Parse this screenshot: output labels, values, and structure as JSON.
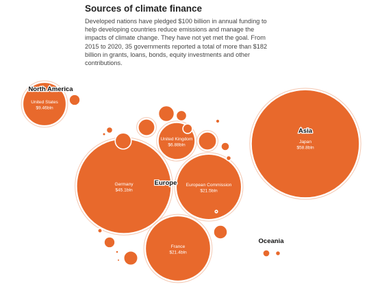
{
  "header": {
    "title": "Sources of climate finance",
    "subtitle": "Developed nations have pledged $100 billion in annual funding to help developing countries reduce emissions and manage the impacts of climate change. They have not yet met the goal. From 2015 to 2020, 35 governments reported a total of more than $182 billion in grants, loans, bonds, equity investments and other contributions."
  },
  "chart_data": {
    "type": "bubble",
    "unit": "bln",
    "regions": [
      {
        "name": "North America",
        "countries": [
          {
            "name": "United States",
            "label": "$9.46bln",
            "value": 9.46
          },
          {
            "name": "",
            "label": "",
            "value": 0.6
          }
        ]
      },
      {
        "name": "Asia",
        "countries": [
          {
            "name": "Japan",
            "label": "$58.8bln",
            "value": 58.8
          }
        ]
      },
      {
        "name": "Europe",
        "countries": [
          {
            "name": "Germany",
            "label": "$45.1bln",
            "value": 45.1
          },
          {
            "name": "European Commission",
            "label": "$21.5bln",
            "value": 21.5
          },
          {
            "name": "France",
            "label": "$21.4bln",
            "value": 21.4
          },
          {
            "name": "United Kingdom",
            "label": "$6.88bln",
            "value": 6.88
          },
          {
            "name": "",
            "label": "",
            "value": 1.65
          },
          {
            "name": "",
            "label": "",
            "value": 1.4
          },
          {
            "name": "",
            "label": "",
            "value": 1.3
          },
          {
            "name": "",
            "label": "",
            "value": 1.25
          },
          {
            "name": "",
            "label": "",
            "value": 1.0
          },
          {
            "name": "",
            "label": "",
            "value": 0.95
          },
          {
            "name": "",
            "label": "",
            "value": 0.6
          },
          {
            "name": "",
            "label": "",
            "value": 0.55
          },
          {
            "name": "",
            "label": "",
            "value": 0.45
          },
          {
            "name": "",
            "label": "",
            "value": 0.35
          },
          {
            "name": "",
            "label": "",
            "value": 0.2
          },
          {
            "name": "",
            "label": "",
            "value": 0.12
          },
          {
            "name": "",
            "label": "",
            "value": 0.1
          },
          {
            "name": "",
            "label": "",
            "value": 0.08
          },
          {
            "name": "",
            "label": "",
            "value": 0.05
          },
          {
            "name": "",
            "label": "",
            "value": 0.04
          },
          {
            "name": "",
            "label": "",
            "value": 0.03
          },
          {
            "name": "",
            "label": "",
            "value": 0.03
          }
        ]
      },
      {
        "name": "Oceania",
        "countries": [
          {
            "name": "",
            "label": "",
            "value": 0.25
          },
          {
            "name": "",
            "label": "",
            "value": 0.12
          }
        ]
      }
    ],
    "colors": {
      "bubble": "#e8692c",
      "outline": "#ffffff",
      "halo": "#f4c8b2"
    }
  }
}
